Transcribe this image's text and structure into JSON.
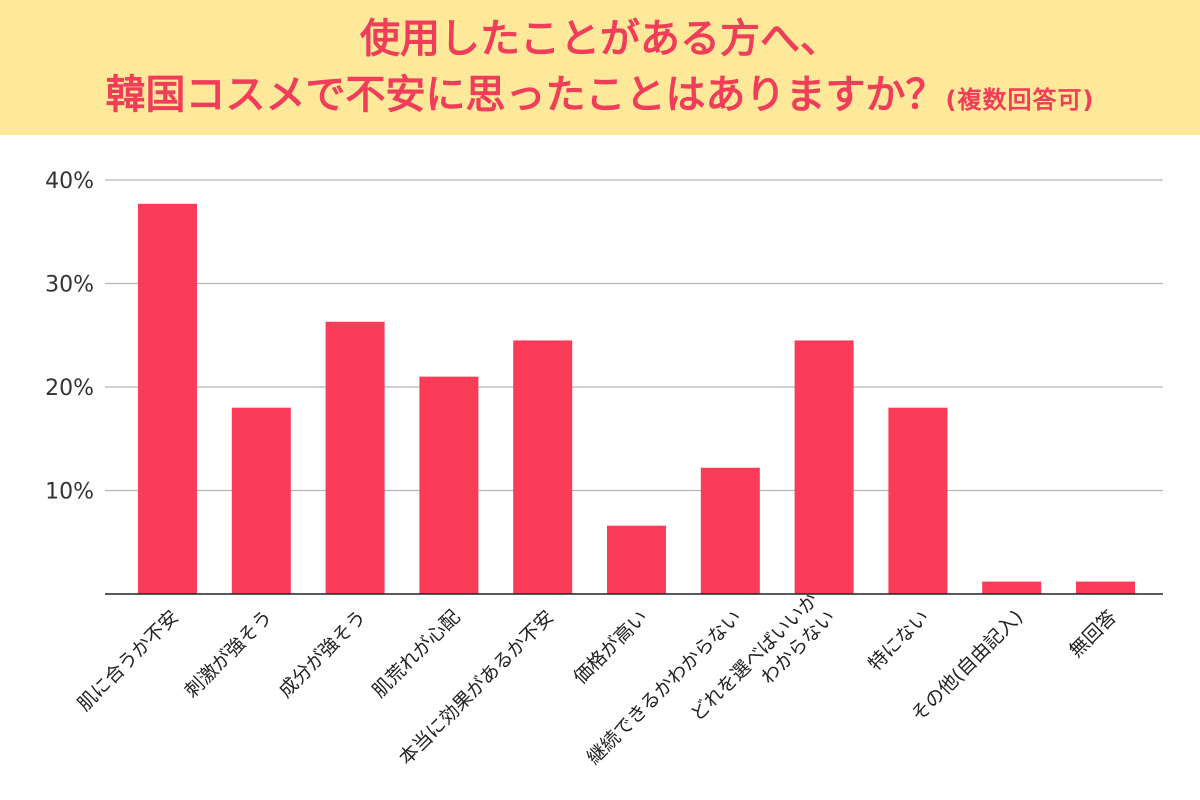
{
  "title": {
    "line1": "使用したことがある方へ、",
    "line2": "韓国コスメで不安に思ったことはありますか？",
    "note": "(複数回答可)"
  },
  "colors": {
    "bar": "#fa3c58",
    "title_text": "#f03d5a",
    "title_band": "#fde999",
    "grid": "#b5b5b5"
  },
  "chart_data": {
    "type": "bar",
    "title": "使用したことがある方へ、韓国コスメで不安に思ったことはありますか？(複数回答可)",
    "xlabel": "",
    "ylabel": "",
    "ylim": [
      0,
      40
    ],
    "yticks": [
      10,
      20,
      30,
      40
    ],
    "ytick_labels": [
      "10%",
      "20%",
      "30%",
      "40%"
    ],
    "grid": true,
    "categories": [
      "肌に合うか不安",
      "刺激が強そう",
      "成分が強そう",
      "肌荒れが心配",
      "本当に効果があるか不安",
      "価格が高い",
      "継続できるかわからない",
      "どれを選べばいいか\nわからない",
      "特にない",
      "その他(自由記入)",
      "無回答"
    ],
    "values": [
      37.7,
      18.0,
      26.3,
      21.0,
      24.5,
      6.6,
      12.2,
      24.5,
      18.0,
      1.2,
      1.2
    ]
  }
}
